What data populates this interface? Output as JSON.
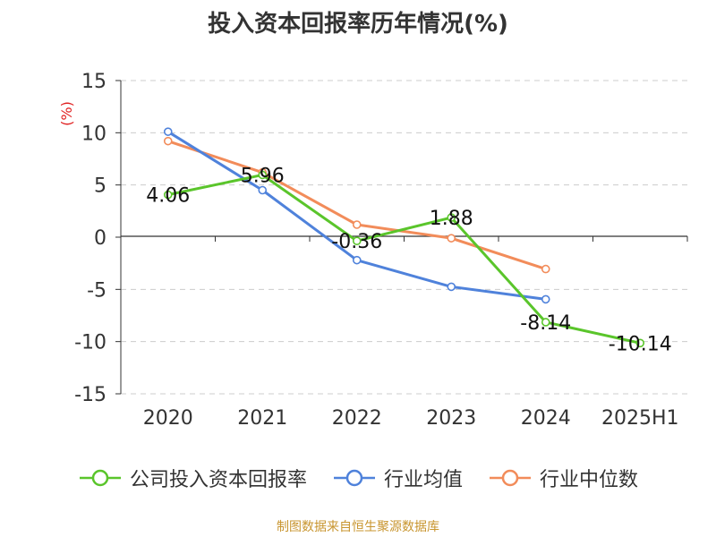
{
  "chart_data": {
    "type": "line",
    "title": "投入资本回报率历年情况(%)",
    "ylabel": "(%)",
    "categories": [
      "2020",
      "2021",
      "2022",
      "2023",
      "2024",
      "2025H1"
    ],
    "ylim": [
      -15,
      15
    ],
    "yticks": [
      15,
      10,
      5,
      0,
      -5,
      -10,
      -15
    ],
    "grid": true,
    "legend_position": "bottom",
    "series": [
      {
        "name": "公司投入资本回报率",
        "color": "#5ac52b",
        "values": [
          4.06,
          5.96,
          -0.36,
          1.88,
          -8.14,
          -10.14
        ],
        "labels": [
          "4.06",
          "5.96",
          "-0.36",
          "1.88",
          "-8.14",
          "-10.14"
        ]
      },
      {
        "name": "行业均值",
        "color": "#4f82db",
        "values": [
          10.1,
          4.5,
          -2.2,
          -4.75,
          -5.95,
          null
        ]
      },
      {
        "name": "行业中位数",
        "color": "#f28c5a",
        "values": [
          9.2,
          6.2,
          1.2,
          -0.1,
          -3.05,
          null
        ]
      }
    ]
  },
  "source": "制图数据来自恒生聚源数据库",
  "colors": {
    "axis_red": "#e02020",
    "text": "#333333",
    "grid": "#cccccc",
    "source": "#c8952f"
  }
}
